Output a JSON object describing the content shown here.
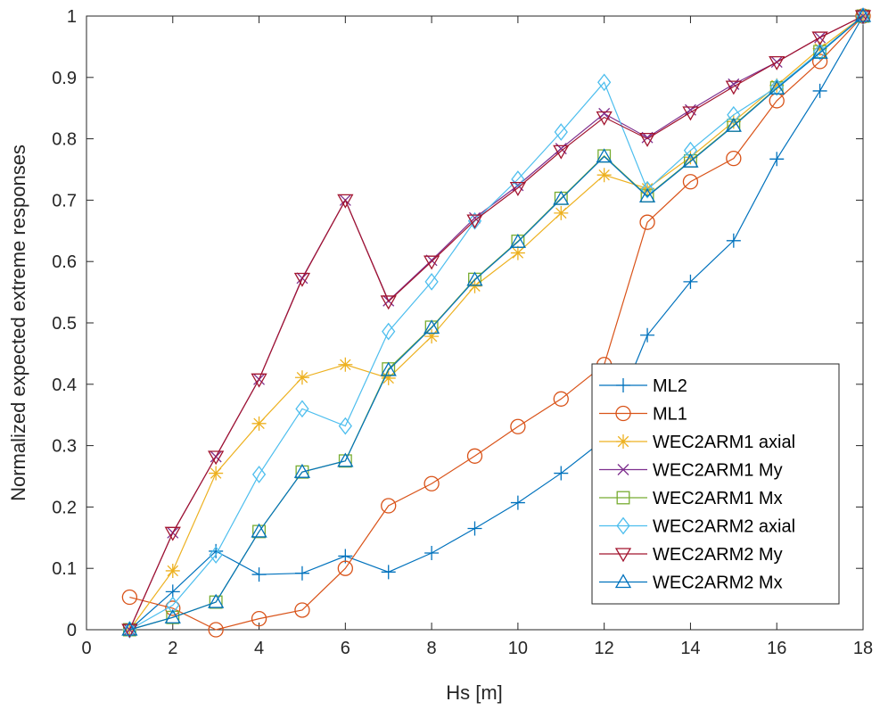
{
  "chart_data": {
    "type": "line",
    "xlabel": "Hs [m]",
    "ylabel": "Normalized expected extreme responses",
    "xlim": [
      0,
      18
    ],
    "ylim": [
      0,
      1
    ],
    "xticks": [
      "0",
      "2",
      "4",
      "6",
      "8",
      "10",
      "12",
      "14",
      "16",
      "18"
    ],
    "yticks": [
      "0",
      "0.1",
      "0.2",
      "0.3",
      "0.4",
      "0.5",
      "0.6",
      "0.7",
      "0.8",
      "0.9",
      "1"
    ],
    "grid": false,
    "legend_position": "bottom-right",
    "x": [
      1,
      2,
      3,
      4,
      5,
      6,
      7,
      8,
      9,
      10,
      11,
      12,
      13,
      14,
      15,
      16,
      17,
      18
    ],
    "series": [
      {
        "name": "ML2",
        "color": "#0072BD",
        "marker": "plus",
        "values": [
          0,
          0.062,
          0.128,
          0.09,
          0.092,
          0.12,
          0.094,
          0.125,
          0.165,
          0.207,
          0.255,
          0.31,
          0.48,
          0.567,
          0.634,
          0.767,
          0.878,
          1
        ]
      },
      {
        "name": "ML1",
        "color": "#D95319",
        "marker": "circle",
        "values": [
          0.053,
          0.035,
          0,
          0.018,
          0.032,
          0.1,
          0.202,
          0.238,
          0.283,
          0.331,
          0.376,
          0.432,
          0.664,
          0.73,
          0.768,
          0.862,
          0.926,
          1
        ]
      },
      {
        "name": "WEC2ARM1 axial",
        "color": "#EDB120",
        "marker": "asterisk",
        "values": [
          0,
          0.096,
          0.255,
          0.336,
          0.411,
          0.432,
          0.41,
          0.478,
          0.56,
          0.614,
          0.679,
          0.741,
          0.719,
          0.77,
          0.828,
          0.887,
          0.947,
          1
        ]
      },
      {
        "name": "WEC2ARM1 My",
        "color": "#7E2F8E",
        "marker": "x",
        "values": [
          0,
          0.158,
          0.282,
          0.408,
          0.573,
          0.7,
          0.536,
          0.602,
          0.671,
          0.724,
          0.784,
          0.841,
          0.802,
          0.847,
          0.889,
          0.925,
          0.965,
          1
        ]
      },
      {
        "name": "WEC2ARM1 Mx",
        "color": "#77AC30",
        "marker": "square",
        "values": [
          0,
          0.02,
          0.045,
          0.16,
          0.257,
          0.275,
          0.425,
          0.493,
          0.571,
          0.633,
          0.703,
          0.772,
          0.707,
          0.764,
          0.822,
          0.883,
          0.942,
          1
        ]
      },
      {
        "name": "WEC2ARM2 axial",
        "color": "#4DBEEE",
        "marker": "diamond",
        "values": [
          0,
          0.04,
          0.122,
          0.253,
          0.36,
          0.332,
          0.486,
          0.567,
          0.666,
          0.734,
          0.811,
          0.892,
          0.717,
          0.781,
          0.839,
          0.884,
          0.942,
          1
        ]
      },
      {
        "name": "WEC2ARM2 My",
        "color": "#A2142F",
        "marker": "triangle-down",
        "values": [
          0,
          0.158,
          0.282,
          0.408,
          0.572,
          0.7,
          0.535,
          0.6,
          0.667,
          0.72,
          0.78,
          0.835,
          0.8,
          0.843,
          0.885,
          0.925,
          0.965,
          1
        ]
      },
      {
        "name": "WEC2ARM2 Mx",
        "color": "#0072BD",
        "marker": "triangle-up",
        "values": [
          0,
          0.02,
          0.045,
          0.16,
          0.257,
          0.275,
          0.423,
          0.492,
          0.57,
          0.632,
          0.702,
          0.771,
          0.706,
          0.763,
          0.821,
          0.882,
          0.94,
          1
        ]
      }
    ]
  }
}
